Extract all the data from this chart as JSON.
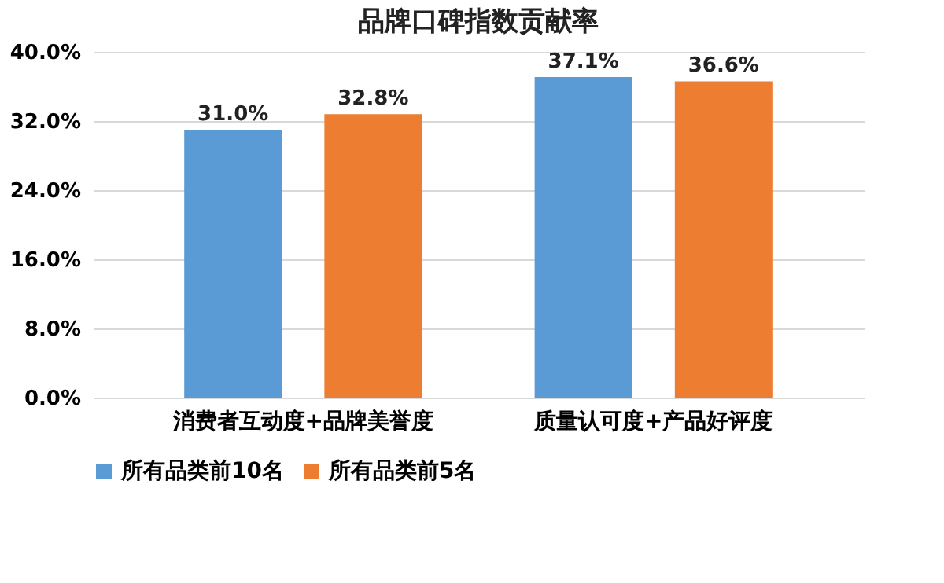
{
  "chart_data": {
    "type": "bar",
    "title": "品牌口碑指数贡献率",
    "categories": [
      "消费者互动度+品牌美誉度",
      "质量认可度+产品好评度"
    ],
    "series": [
      {
        "name": "所有品类前10名",
        "color": "#5b9bd5",
        "values": [
          31.0,
          37.1
        ],
        "value_labels": [
          "31.0%",
          "37.1%"
        ]
      },
      {
        "name": "所有品类前5名",
        "color": "#ed7d31",
        "values": [
          32.8,
          36.6
        ],
        "value_labels": [
          "32.8%",
          "36.6%"
        ]
      }
    ],
    "ylim": [
      0,
      40
    ],
    "yticks": [
      {
        "value": 0,
        "label": "0.0%"
      },
      {
        "value": 8,
        "label": "8.0%"
      },
      {
        "value": 16,
        "label": "16.0%"
      },
      {
        "value": 24,
        "label": "24.0%"
      },
      {
        "value": 32,
        "label": "32.0%"
      },
      {
        "value": 40,
        "label": "40.0%"
      }
    ],
    "grid": "y",
    "legend": "bottom"
  }
}
